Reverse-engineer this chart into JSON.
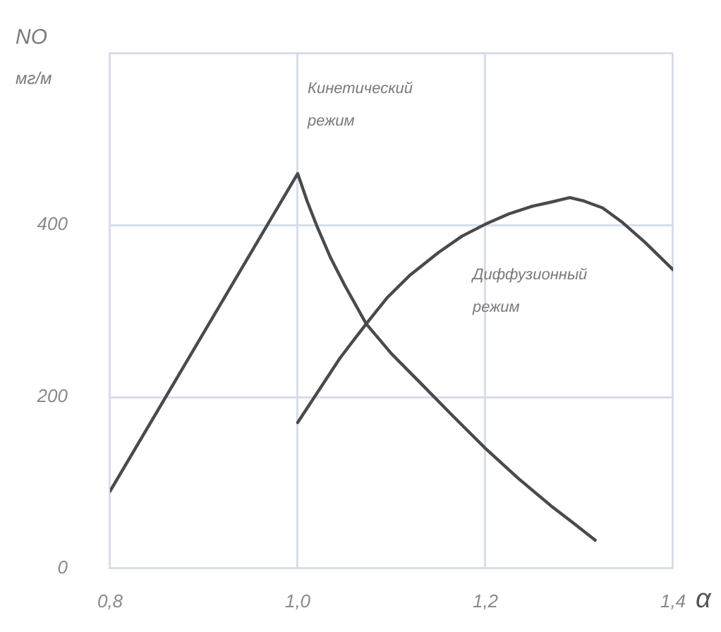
{
  "chart_data": {
    "type": "line",
    "ylabel": "NO\nмг/м",
    "xlabel": "α",
    "xlim": [
      0.8,
      1.4
    ],
    "xticks": [
      {
        "value": 0.8,
        "label": "0,8"
      },
      {
        "value": 1.0,
        "label": "1,0"
      },
      {
        "value": 1.2,
        "label": "1,2"
      },
      {
        "value": 1.4,
        "label": "1,4"
      }
    ],
    "ylim": [
      0,
      600
    ],
    "yticks": [
      0,
      200,
      400,
      {
        "value": 600,
        "label": null
      }
    ],
    "grid": true,
    "series": [
      {
        "color": "#4a4a4a",
        "x": [
          0.8,
          1.0,
          1.01,
          1.02,
          1.035,
          1.05,
          1.073,
          1.1,
          1.13,
          1.165,
          1.2,
          1.235,
          1.27,
          1.295,
          1.317
        ],
        "values": [
          90,
          460,
          428,
          400,
          362,
          330,
          285,
          250,
          217,
          178,
          140,
          105,
          73,
          52,
          33
        ]
      },
      {
        "color": "#4a4a4a",
        "x": [
          1.0,
          1.045,
          1.073,
          1.095,
          1.12,
          1.15,
          1.175,
          1.2,
          1.225,
          1.25,
          1.275,
          1.29,
          1.305,
          1.325,
          1.345,
          1.37,
          1.4
        ],
        "values": [
          170,
          245,
          285,
          315,
          342,
          368,
          387,
          401,
          413,
          422,
          428,
          432,
          428,
          420,
          404,
          380,
          348
        ]
      }
    ],
    "annotations": [
      "Кинетический\nрежим",
      "Диффузионный\nрежим"
    ]
  }
}
